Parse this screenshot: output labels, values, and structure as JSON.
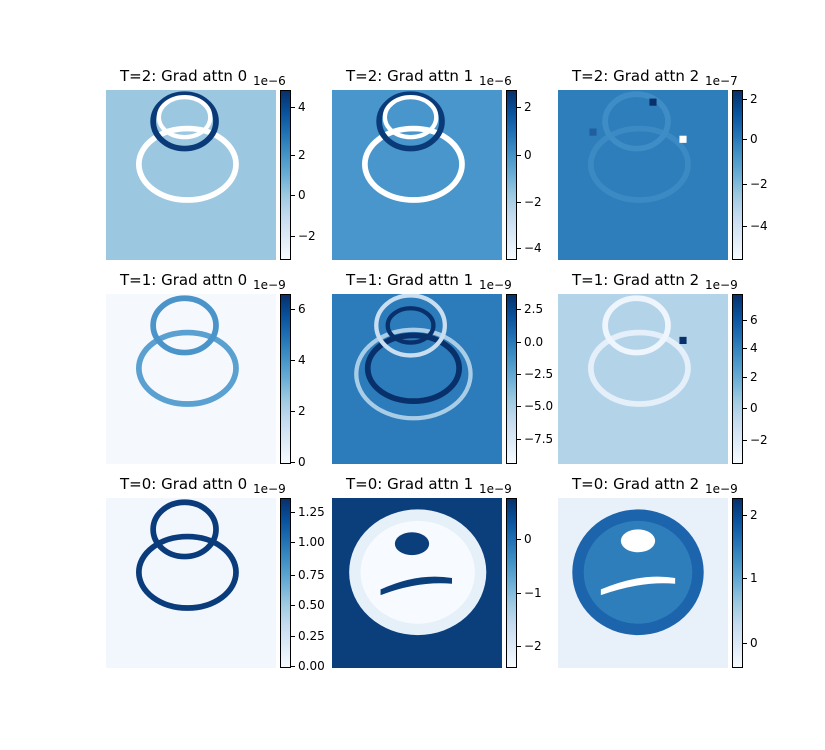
{
  "figure": {
    "panels": [
      {
        "title": "T=2: Grad attn 0",
        "offset": "1e−6",
        "ticks": [
          "4",
          "2",
          "0",
          "−2"
        ],
        "tick_fracs": [
          0.1,
          0.38,
          0.62,
          0.86
        ],
        "bg": "#9cc7e0",
        "style": "ring-white-dark"
      },
      {
        "title": "T=2: Grad attn 1",
        "offset": "1e−6",
        "ticks": [
          "2",
          "0",
          "−2",
          "−4"
        ],
        "tick_fracs": [
          0.1,
          0.38,
          0.66,
          0.93
        ],
        "bg": "#4896cb",
        "style": "ring-white-dark"
      },
      {
        "title": "T=2: Grad attn 2",
        "offset": "1e−7",
        "ticks": [
          "2",
          "0",
          "−2",
          "−4"
        ],
        "tick_fracs": [
          0.05,
          0.29,
          0.55,
          0.8
        ],
        "bg": "#2e7ebc",
        "style": "faint"
      },
      {
        "title": "T=1: Grad attn 0",
        "offset": "1e−9",
        "ticks": [
          "6",
          "4",
          "2",
          "0"
        ],
        "tick_fracs": [
          0.09,
          0.39,
          0.69,
          0.99
        ],
        "bg": "#f5f9fe",
        "style": "ring-mid"
      },
      {
        "title": "T=1: Grad attn 1",
        "offset": "1e−9",
        "ticks": [
          "2.5",
          "0.0",
          "−2.5",
          "−5.0",
          "−7.5"
        ],
        "tick_fracs": [
          0.09,
          0.28,
          0.47,
          0.66,
          0.85
        ],
        "bg": "#2c7bba",
        "style": "ring-double"
      },
      {
        "title": "T=1: Grad attn 2",
        "offset": "1e−9",
        "ticks": [
          "6",
          "4",
          "2",
          "0",
          "−2"
        ],
        "tick_fracs": [
          0.15,
          0.32,
          0.49,
          0.67,
          0.86
        ],
        "bg": "#b3d3e9",
        "style": "ring-light"
      },
      {
        "title": "T=0: Grad attn 0",
        "offset": "1e−9",
        "ticks": [
          "1.25",
          "1.00",
          "0.75",
          "0.50",
          "0.25",
          "0.00"
        ],
        "tick_fracs": [
          0.08,
          0.26,
          0.45,
          0.63,
          0.81,
          0.99
        ],
        "bg": "#f1f7fd",
        "style": "ring-dark"
      },
      {
        "title": "T=0: Grad attn 1",
        "offset": "1e−9",
        "ticks": [
          "0",
          "−1",
          "−2"
        ],
        "tick_fracs": [
          0.24,
          0.56,
          0.87
        ],
        "bg": "#0b3f7c",
        "style": "filled-light"
      },
      {
        "title": "T=0: Grad attn 2",
        "offset": "1e−9",
        "ticks": [
          "2",
          "1",
          "0"
        ],
        "tick_fracs": [
          0.1,
          0.47,
          0.85
        ],
        "bg": "#e8f1fa",
        "style": "filled-dark"
      }
    ]
  },
  "chart_data": [
    {
      "type": "heatmap",
      "title": "T=2: Grad attn 0",
      "colormap": "Blues",
      "colorbar_ticks": [
        4,
        2,
        0,
        -2
      ],
      "colorbar_offset": "1e-6"
    },
    {
      "type": "heatmap",
      "title": "T=2: Grad attn 1",
      "colormap": "Blues",
      "colorbar_ticks": [
        2,
        0,
        -2,
        -4
      ],
      "colorbar_offset": "1e-6"
    },
    {
      "type": "heatmap",
      "title": "T=2: Grad attn 2",
      "colormap": "Blues",
      "colorbar_ticks": [
        2,
        0,
        -2,
        -4
      ],
      "colorbar_offset": "1e-7"
    },
    {
      "type": "heatmap",
      "title": "T=1: Grad attn 0",
      "colormap": "Blues",
      "colorbar_ticks": [
        6,
        4,
        2,
        0
      ],
      "colorbar_offset": "1e-9"
    },
    {
      "type": "heatmap",
      "title": "T=1: Grad attn 1",
      "colormap": "Blues",
      "colorbar_ticks": [
        2.5,
        0.0,
        -2.5,
        -5.0,
        -7.5
      ],
      "colorbar_offset": "1e-9"
    },
    {
      "type": "heatmap",
      "title": "T=1: Grad attn 2",
      "colormap": "Blues",
      "colorbar_ticks": [
        6,
        4,
        2,
        0,
        -2
      ],
      "colorbar_offset": "1e-9"
    },
    {
      "type": "heatmap",
      "title": "T=0: Grad attn 0",
      "colormap": "Blues",
      "colorbar_ticks": [
        1.25,
        1.0,
        0.75,
        0.5,
        0.25,
        0.0
      ],
      "colorbar_offset": "1e-9"
    },
    {
      "type": "heatmap",
      "title": "T=0: Grad attn 1",
      "colormap": "Blues",
      "colorbar_ticks": [
        0,
        -1,
        -2
      ],
      "colorbar_offset": "1e-9"
    },
    {
      "type": "heatmap",
      "title": "T=0: Grad attn 2",
      "colormap": "Blues",
      "colorbar_ticks": [
        2,
        1,
        0
      ],
      "colorbar_offset": "1e-9"
    }
  ]
}
